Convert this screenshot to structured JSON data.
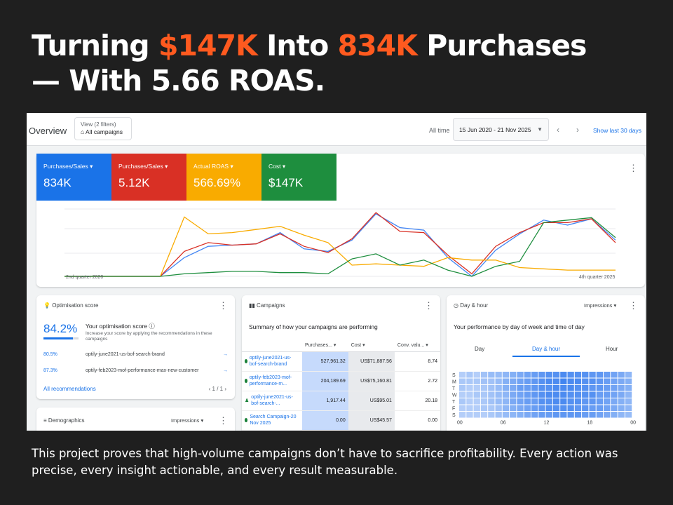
{
  "headline": {
    "part1": "Turning ",
    "hl1": "$147K",
    "part2": " Into ",
    "hl2": "834K",
    "part3": " Purchases",
    "line2": "— With 5.66 ROAS."
  },
  "caption": "This project proves that high-volume campaigns don’t have to sacrifice profitability. Every action was precise, every insight actionable, and every result measurable.",
  "topbar": {
    "title": "Overview",
    "view_label": "View (2 filters)",
    "view_value": "All campaigns",
    "all_time": "All time",
    "date_range": "15 Jun 2020 - 21 Nov 2025",
    "show_last": "Show last 30 days"
  },
  "metrics": [
    {
      "label": "Purchases/Sales",
      "value": "834K",
      "color": "#1a73e8"
    },
    {
      "label": "Purchases/Sales",
      "value": "5.12K",
      "color": "#d93025"
    },
    {
      "label": "Actual ROAS",
      "value": "566.69%",
      "color": "#f9ab00"
    },
    {
      "label": "Cost",
      "value": "$147K",
      "color": "#1e8e3e"
    }
  ],
  "chart_data": {
    "type": "line",
    "x_start_label": "2nd quarter 2020",
    "x_end_label": "4th quarter 2025",
    "x": [
      0,
      1,
      2,
      3,
      4,
      5,
      6,
      7,
      8,
      9,
      10,
      11,
      12,
      13,
      14,
      15,
      16,
      17,
      18,
      19,
      20,
      21,
      22,
      23
    ],
    "series": [
      {
        "name": "Purchases/Sales",
        "color": "#4285f4",
        "values": [
          0,
          0,
          0,
          0,
          0,
          30,
          48,
          50,
          52,
          70,
          44,
          40,
          58,
          100,
          78,
          74,
          30,
          0,
          42,
          68,
          90,
          82,
          92,
          58
        ]
      },
      {
        "name": "Purchases/Sales",
        "color": "#d93025",
        "values": [
          0,
          0,
          0,
          0,
          0,
          40,
          54,
          50,
          52,
          68,
          48,
          38,
          60,
          102,
          72,
          70,
          34,
          4,
          48,
          70,
          86,
          86,
          92,
          54
        ]
      },
      {
        "name": "Actual ROAS",
        "color": "#f9ab00",
        "values": [
          0,
          0,
          0,
          0,
          0,
          95,
          68,
          70,
          75,
          80,
          66,
          54,
          18,
          20,
          18,
          16,
          30,
          26,
          26,
          14,
          12,
          10,
          10,
          10
        ]
      },
      {
        "name": "Cost",
        "color": "#1e8e3e",
        "values": [
          0,
          0,
          0,
          0,
          0,
          4,
          6,
          8,
          8,
          6,
          6,
          4,
          28,
          36,
          18,
          26,
          10,
          0,
          16,
          24,
          86,
          90,
          94,
          62
        ]
      }
    ],
    "ylim": [
      0,
      110
    ],
    "grid": true,
    "legend": "none"
  },
  "optimisation": {
    "title": "Optimisation score",
    "score": "84.2%",
    "score_fraction": 0.842,
    "heading": "Your optimisation score",
    "desc": "Increase your score by applying the recommendations in these campaigns",
    "rows": [
      {
        "pct": "80.5%",
        "name": "optily-june2021-us-bof-search-brand"
      },
      {
        "pct": "87.3%",
        "name": "optily-feb2023-mof-performance-max-new-customer"
      }
    ],
    "all": "All recommendations",
    "pager": "1 / 1"
  },
  "demographics": {
    "title": "Demographics",
    "metric": "Impressions"
  },
  "campaigns": {
    "title": "Campaigns",
    "summary": "Summary of how your campaigns are performing",
    "headers": [
      "Purchases...",
      "Cost",
      "Conv. valu..."
    ],
    "rows": [
      {
        "name": "optily-june2021-us-bof-search-brand",
        "purchases": "527,961.32",
        "cost": "US$71,887.56",
        "conv": "8.74",
        "status": "dot"
      },
      {
        "name": "optily-feb2023-mof-performance-m...",
        "purchases": "204,189.69",
        "cost": "US$75,160.81",
        "conv": "2.72",
        "status": "dot"
      },
      {
        "name": "optily-june2021-us-bof-search-...",
        "purchases": "1,917.44",
        "cost": "US$95.01",
        "conv": "20.18",
        "status": "person"
      },
      {
        "name": "Search Campaign-20 Nov 2025",
        "purchases": "0.00",
        "cost": "US$45.57",
        "conv": "0.00",
        "status": "dot"
      }
    ]
  },
  "dayhour": {
    "title": "Day & hour",
    "metric": "Impressions",
    "subtitle": "Your performance by day of week and time of day",
    "tabs": [
      "Day",
      "Day & hour",
      "Hour"
    ],
    "days": [
      "S",
      "M",
      "T",
      "W",
      "T",
      "F",
      "S"
    ],
    "hours": [
      "00",
      "06",
      "12",
      "18",
      "00"
    ],
    "intensity": [
      [
        0.2,
        0.25,
        0.2,
        0.3,
        0.35,
        0.35,
        0.4,
        0.45,
        0.5,
        0.55,
        0.6,
        0.65,
        0.7,
        0.7,
        0.75,
        0.7,
        0.7,
        0.7,
        0.65,
        0.65,
        0.6,
        0.55,
        0.5,
        0.4
      ],
      [
        0.25,
        0.25,
        0.25,
        0.3,
        0.3,
        0.35,
        0.45,
        0.5,
        0.55,
        0.6,
        0.65,
        0.7,
        0.75,
        0.75,
        0.8,
        0.75,
        0.75,
        0.7,
        0.7,
        0.65,
        0.6,
        0.55,
        0.5,
        0.45
      ],
      [
        0.25,
        0.2,
        0.2,
        0.25,
        0.3,
        0.35,
        0.45,
        0.5,
        0.6,
        0.6,
        0.65,
        0.7,
        0.7,
        0.75,
        0.75,
        0.75,
        0.7,
        0.7,
        0.65,
        0.65,
        0.6,
        0.55,
        0.5,
        0.45
      ],
      [
        0.2,
        0.2,
        0.25,
        0.25,
        0.3,
        0.35,
        0.4,
        0.5,
        0.55,
        0.6,
        0.65,
        0.7,
        0.75,
        0.75,
        0.75,
        0.7,
        0.7,
        0.7,
        0.7,
        0.6,
        0.6,
        0.55,
        0.5,
        0.4
      ],
      [
        0.25,
        0.2,
        0.2,
        0.25,
        0.3,
        0.35,
        0.4,
        0.5,
        0.55,
        0.6,
        0.6,
        0.7,
        0.7,
        0.75,
        0.75,
        0.7,
        0.7,
        0.65,
        0.65,
        0.6,
        0.55,
        0.5,
        0.45,
        0.4
      ],
      [
        0.2,
        0.2,
        0.2,
        0.25,
        0.25,
        0.3,
        0.4,
        0.45,
        0.5,
        0.55,
        0.6,
        0.65,
        0.7,
        0.7,
        0.7,
        0.7,
        0.65,
        0.65,
        0.6,
        0.6,
        0.55,
        0.5,
        0.45,
        0.4
      ],
      [
        0.2,
        0.2,
        0.2,
        0.2,
        0.25,
        0.3,
        0.35,
        0.4,
        0.45,
        0.5,
        0.55,
        0.6,
        0.6,
        0.65,
        0.65,
        0.65,
        0.65,
        0.6,
        0.6,
        0.55,
        0.5,
        0.45,
        0.4,
        0.35
      ]
    ]
  }
}
